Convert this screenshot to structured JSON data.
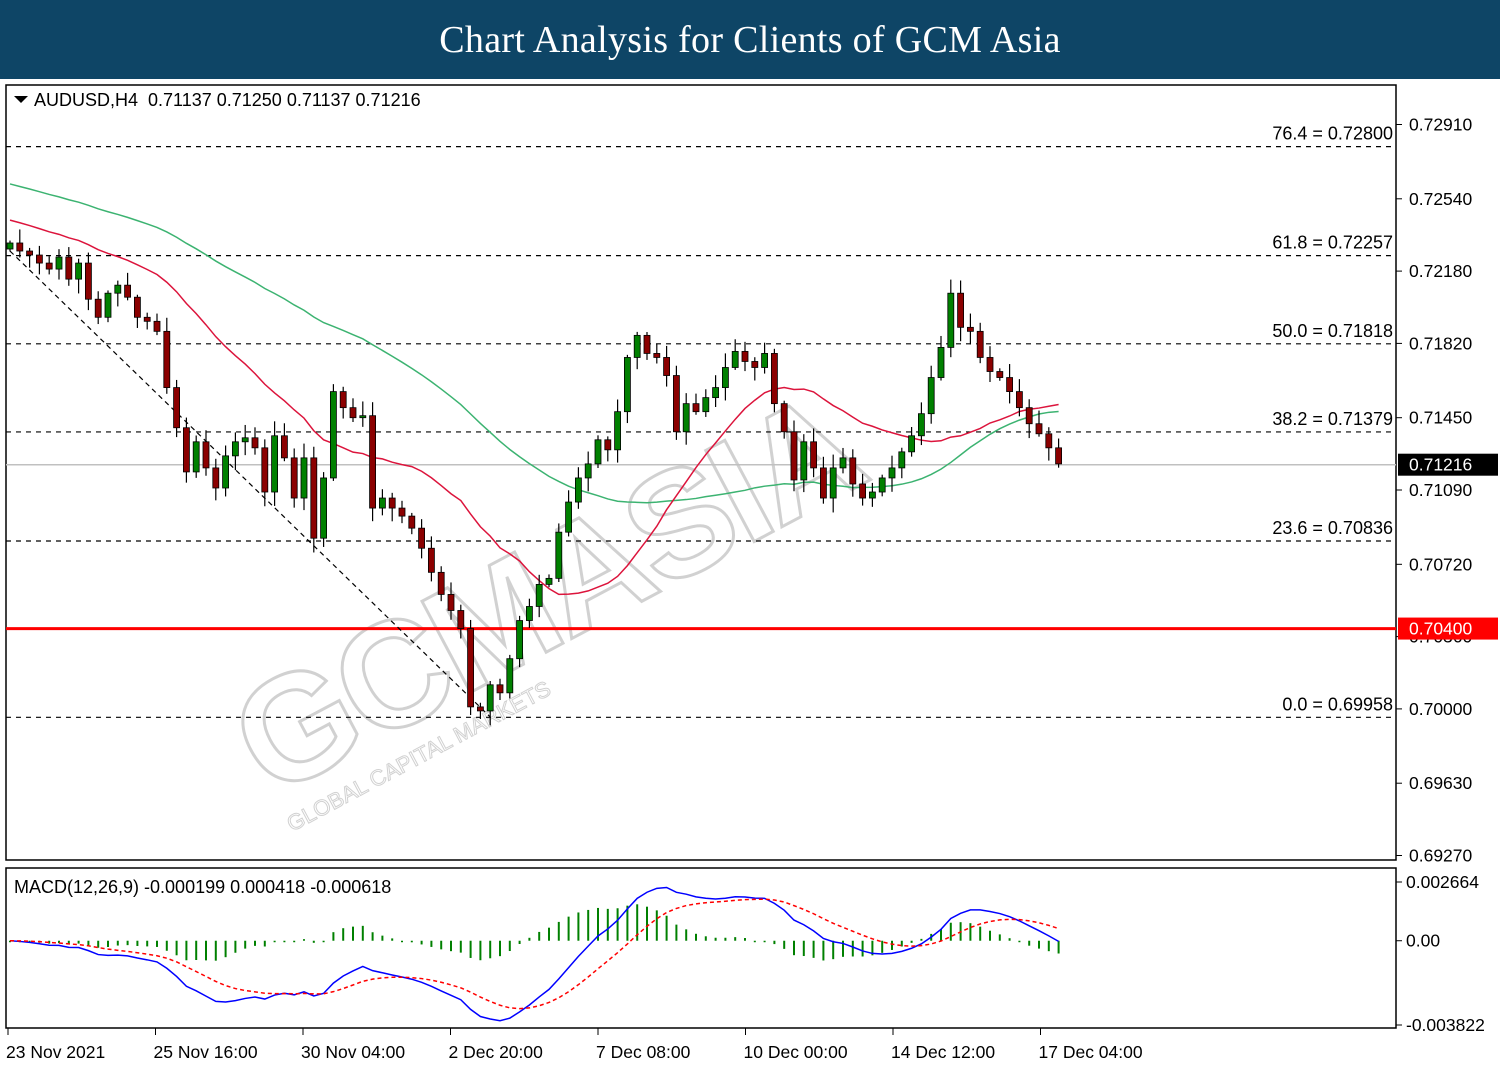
{
  "header": {
    "title": "Chart Analysis for Clients of GCM Asia"
  },
  "chart_info": {
    "symbol_line": "AUDUSD,H4  0.71137 0.71250 0.71137 0.71216",
    "macd_line": "MACD(12,26,9) -0.000199 0.000418 -0.000618"
  },
  "watermark": {
    "logo": "GCMASIA",
    "sub": "GLOBAL CAPITAL MARKETS"
  },
  "colors": {
    "bull": "#008000",
    "bear": "#8b0000",
    "ma_fast": "#dc143c",
    "ma_slow": "#3cb371",
    "support": "#ff0000",
    "macd_line": "#0000ff",
    "signal_line": "#ff0000",
    "histogram": "#008000"
  },
  "chart_data": [
    {
      "type": "candlestick",
      "symbol": "AUDUSD",
      "timeframe": "H4",
      "ohlc_readout": {
        "open": 0.71137,
        "high": 0.7125,
        "low": 0.71137,
        "close": 0.71216
      },
      "y_ticks": [
        "0.72910",
        "0.72540",
        "0.72180",
        "0.71820",
        "0.71450",
        "0.71090",
        "0.70720",
        "0.70360",
        "0.70000",
        "0.69630",
        "0.69270"
      ],
      "ylim": [
        0.6927,
        0.7298
      ],
      "x_ticks": [
        "23 Nov 2021",
        "25 Nov 16:00",
        "30 Nov 04:00",
        "2 Dec 20:00",
        "7 Dec 08:00",
        "10 Dec 00:00",
        "14 Dec 12:00",
        "17 Dec 04:00"
      ],
      "current_price": {
        "label": "0.71216",
        "value": 0.71216
      },
      "support_level": {
        "label": "0.70400",
        "value": 0.704
      },
      "fibonacci_levels": [
        {
          "label": "76.4 = 0.72800",
          "value": 0.728
        },
        {
          "label": "61.8 = 0.72257",
          "value": 0.72257
        },
        {
          "label": "50.0 = 0.71818",
          "value": 0.71818
        },
        {
          "label": "38.2 = 0.71379",
          "value": 0.71379
        },
        {
          "label": "23.6 = 0.70836",
          "value": 0.70836
        },
        {
          "label": "0.0 = 0.69958",
          "value": 0.69958
        }
      ],
      "closes": [
        0.7232,
        0.7228,
        0.7226,
        0.7222,
        0.7219,
        0.7225,
        0.7214,
        0.7222,
        0.7204,
        0.7195,
        0.7207,
        0.7211,
        0.7205,
        0.7195,
        0.7193,
        0.7188,
        0.716,
        0.714,
        0.7118,
        0.7133,
        0.712,
        0.711,
        0.7126,
        0.7133,
        0.7135,
        0.713,
        0.7108,
        0.7136,
        0.7125,
        0.7105,
        0.7125,
        0.7085,
        0.7115,
        0.7158,
        0.715,
        0.7145,
        0.7146,
        0.71,
        0.7105,
        0.71,
        0.7096,
        0.709,
        0.708,
        0.7068,
        0.7057,
        0.7049,
        0.704,
        0.7001,
        0.6999,
        0.7012,
        0.7008,
        0.7025,
        0.7044,
        0.7051,
        0.7062,
        0.7065,
        0.7088,
        0.7103,
        0.7115,
        0.7122,
        0.7134,
        0.7129,
        0.7148,
        0.7175,
        0.7186,
        0.7177,
        0.7175,
        0.7166,
        0.7138,
        0.7152,
        0.7148,
        0.7155,
        0.716,
        0.717,
        0.7178,
        0.7173,
        0.717,
        0.7177,
        0.7152,
        0.7138,
        0.7114,
        0.7133,
        0.712,
        0.7105,
        0.712,
        0.7125,
        0.7112,
        0.7105,
        0.7108,
        0.7115,
        0.712,
        0.7128,
        0.7136,
        0.7147,
        0.7165,
        0.718,
        0.7207,
        0.719,
        0.7188,
        0.7175,
        0.7168,
        0.7165,
        0.7158,
        0.715,
        0.7142,
        0.7137,
        0.713,
        0.7122
      ],
      "ma_fast": "red moving average",
      "ma_slow": "green moving average"
    },
    {
      "type": "line+histogram",
      "indicator": "MACD(12,26,9)",
      "values": {
        "histogram": -0.000199,
        "macd": 0.000418,
        "signal": -0.000618
      },
      "y_ticks": [
        "0.002664",
        "0.00",
        "-0.003822"
      ],
      "ylim": [
        -0.003822,
        0.002664
      ]
    }
  ]
}
